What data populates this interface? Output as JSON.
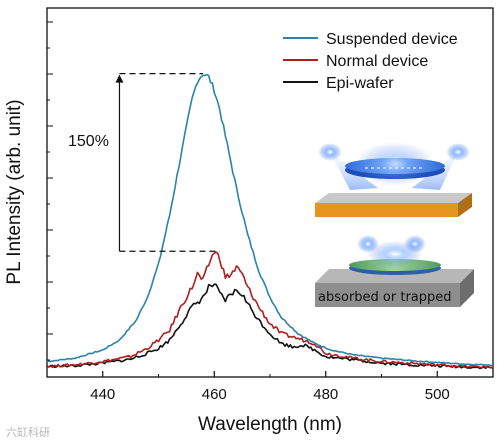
{
  "chart_data": {
    "type": "line",
    "xlabel": "Wavelength (nm)",
    "ylabel": "PL Intensity (arb. unit)",
    "xlim": [
      430,
      510
    ],
    "ylim": [
      0,
      1.0
    ],
    "xticks": [
      440,
      460,
      480,
      500
    ],
    "legend_position": "top-right",
    "grid": false,
    "series": [
      {
        "name": "Suspended device",
        "color": "#2a84a8",
        "x": [
          430,
          435,
          440,
          443,
          446,
          448,
          450,
          452,
          454,
          456,
          457,
          458,
          459,
          460,
          461,
          462,
          464,
          466,
          468,
          470,
          472,
          475,
          478,
          481,
          485,
          490,
          495,
          500,
          505,
          510
        ],
        "y": [
          0.035,
          0.045,
          0.07,
          0.1,
          0.16,
          0.23,
          0.33,
          0.48,
          0.66,
          0.83,
          0.89,
          0.91,
          0.9,
          0.86,
          0.8,
          0.72,
          0.56,
          0.42,
          0.31,
          0.23,
          0.17,
          0.12,
          0.09,
          0.07,
          0.055,
          0.045,
          0.038,
          0.032,
          0.027,
          0.024
        ]
      },
      {
        "name": "Normal device",
        "color": "#b01e1e",
        "x": [
          430,
          435,
          440,
          445,
          448,
          450,
          452,
          454,
          456,
          457,
          458,
          459,
          460,
          461,
          462,
          463,
          464,
          465,
          466,
          468,
          470,
          472,
          474,
          476,
          478,
          480,
          485,
          490,
          495,
          500,
          505,
          510
        ],
        "y": [
          0.02,
          0.025,
          0.035,
          0.05,
          0.075,
          0.1,
          0.13,
          0.2,
          0.26,
          0.3,
          0.28,
          0.33,
          0.37,
          0.35,
          0.29,
          0.3,
          0.32,
          0.3,
          0.26,
          0.2,
          0.15,
          0.12,
          0.11,
          0.1,
          0.09,
          0.06,
          0.045,
          0.035,
          0.03,
          0.025,
          0.02,
          0.018
        ]
      },
      {
        "name": "Epi-wafer",
        "color": "#111111",
        "x": [
          430,
          435,
          440,
          445,
          448,
          450,
          452,
          454,
          456,
          458,
          459,
          460,
          461,
          462,
          463,
          464,
          465,
          466,
          468,
          470,
          472,
          474,
          476,
          478,
          480,
          485,
          490,
          495,
          500,
          505,
          510
        ],
        "y": [
          0.02,
          0.022,
          0.03,
          0.042,
          0.06,
          0.075,
          0.1,
          0.15,
          0.2,
          0.23,
          0.26,
          0.27,
          0.24,
          0.22,
          0.24,
          0.25,
          0.24,
          0.21,
          0.16,
          0.12,
          0.09,
          0.08,
          0.085,
          0.07,
          0.05,
          0.04,
          0.03,
          0.025,
          0.022,
          0.018,
          0.016
        ]
      }
    ],
    "annotation": {
      "label": "150%",
      "top_value": 0.91,
      "bottom_value": 0.37,
      "arrow_x": 443
    },
    "inset": {
      "text": "absorbed or trapped"
    }
  },
  "watermark": "六缸科研"
}
